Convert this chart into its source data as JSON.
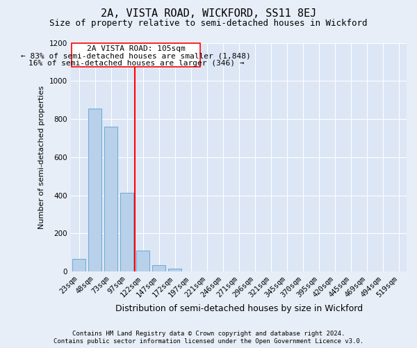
{
  "title": "2A, VISTA ROAD, WICKFORD, SS11 8EJ",
  "subtitle": "Size of property relative to semi-detached houses in Wickford",
  "xlabel": "Distribution of semi-detached houses by size in Wickford",
  "ylabel": "Number of semi-detached properties",
  "categories": [
    "23sqm",
    "48sqm",
    "73sqm",
    "97sqm",
    "122sqm",
    "147sqm",
    "172sqm",
    "197sqm",
    "221sqm",
    "246sqm",
    "271sqm",
    "296sqm",
    "321sqm",
    "345sqm",
    "370sqm",
    "395sqm",
    "420sqm",
    "445sqm",
    "469sqm",
    "494sqm",
    "519sqm"
  ],
  "values": [
    65,
    855,
    760,
    415,
    110,
    35,
    15,
    0,
    0,
    0,
    0,
    0,
    0,
    0,
    0,
    0,
    0,
    0,
    0,
    0,
    0
  ],
  "bar_color": "#b8d0ea",
  "bar_edge_color": "#6aaad4",
  "red_line_x": 3.5,
  "annotation_title": "2A VISTA ROAD: 105sqm",
  "annotation_line1": "← 83% of semi-detached houses are smaller (1,848)",
  "annotation_line2": "16% of semi-detached houses are larger (346) →",
  "ylim": [
    0,
    1200
  ],
  "yticks": [
    0,
    200,
    400,
    600,
    800,
    1000,
    1200
  ],
  "footnote1": "Contains HM Land Registry data © Crown copyright and database right 2024.",
  "footnote2": "Contains public sector information licensed under the Open Government Licence v3.0.",
  "fig_bg_color": "#e8eef8",
  "plot_bg_color": "#dce6f5",
  "grid_color": "#ffffff",
  "title_fontsize": 11,
  "subtitle_fontsize": 9,
  "xlabel_fontsize": 9,
  "ylabel_fontsize": 8,
  "tick_fontsize": 7.5,
  "annotation_fontsize": 8,
  "footnote_fontsize": 6.5
}
